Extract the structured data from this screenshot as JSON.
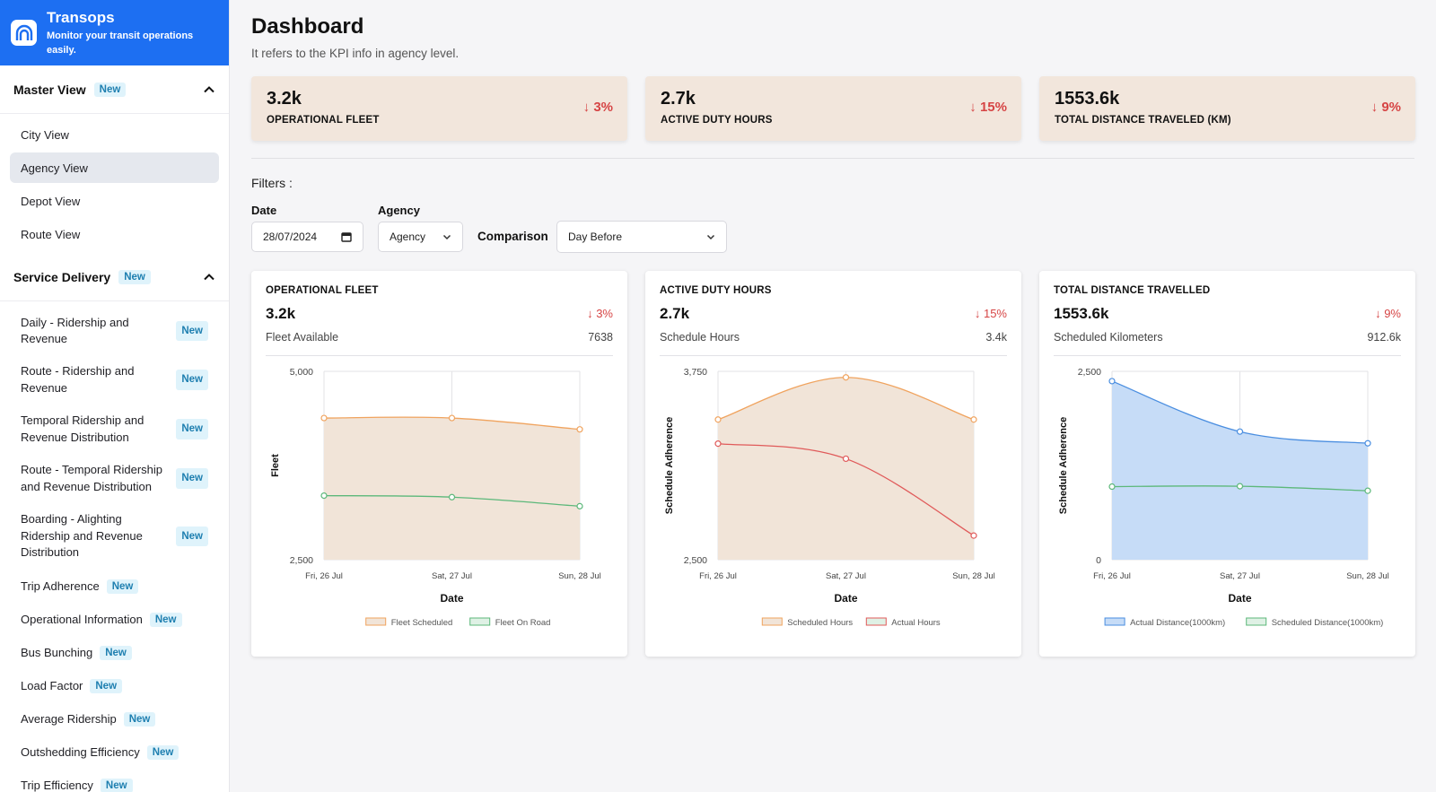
{
  "brand": {
    "title": "Transops",
    "subtitle": "Monitor your transit operations easily."
  },
  "sidebar": {
    "master": {
      "title": "Master View",
      "badge": "New",
      "items": [
        "City View",
        "Agency View",
        "Depot View",
        "Route View"
      ]
    },
    "service": {
      "title": "Service Delivery",
      "badge": "New",
      "items": [
        {
          "label": "Daily - Ridership and Revenue",
          "badge": "New"
        },
        {
          "label": "Route - Ridership and Revenue",
          "badge": "New"
        },
        {
          "label": "Temporal Ridership and Revenue Distribution",
          "badge": "New"
        },
        {
          "label": "Route - Temporal Ridership and Revenue Distribution",
          "badge": "New"
        },
        {
          "label": "Boarding - Alighting Ridership and Revenue Distribution",
          "badge": "New"
        },
        {
          "label": "Trip Adherence",
          "badge": "New"
        },
        {
          "label": "Operational Information",
          "badge": "New"
        },
        {
          "label": "Bus Bunching",
          "badge": "New"
        },
        {
          "label": "Load Factor",
          "badge": "New"
        },
        {
          "label": "Average Ridership",
          "badge": "New"
        },
        {
          "label": "Outshedding Efficiency",
          "badge": "New"
        },
        {
          "label": "Trip Efficiency",
          "badge": "New"
        }
      ]
    }
  },
  "page": {
    "title": "Dashboard",
    "subtitle": "It refers to the KPI info in agency level."
  },
  "kpis": [
    {
      "value": "3.2k",
      "label": "OPERATIONAL FLEET",
      "change": "3%"
    },
    {
      "value": "2.7k",
      "label": "ACTIVE DUTY HOURS",
      "change": "15%"
    },
    {
      "value": "1553.6k",
      "label": "TOTAL DISTANCE TRAVELED (KM)",
      "change": "9%"
    }
  ],
  "filters": {
    "title": "Filters :",
    "date_label": "Date",
    "date_value": "28/07/2024",
    "agency_label": "Agency",
    "agency_value": "Agency",
    "comparison_label": "Comparison",
    "comparison_value": "Day Before"
  },
  "cards": [
    {
      "title": "OPERATIONAL FLEET",
      "value": "3.2k",
      "change": "3%",
      "metric": "Fleet Available",
      "metric_value": "7638"
    },
    {
      "title": "ACTIVE DUTY HOURS",
      "value": "2.7k",
      "change": "15%",
      "metric": "Schedule Hours",
      "metric_value": "3.4k"
    },
    {
      "title": "TOTAL DISTANCE TRAVELLED",
      "value": "1553.6k",
      "change": "9%",
      "metric": "Scheduled Kilometers",
      "metric_value": "912.6k"
    }
  ],
  "colors": {
    "orange": "#f0a35e",
    "green": "#5cb87a",
    "red": "#e05a5a",
    "blue": "#4a8ee0",
    "down": "#d64545"
  },
  "chart_data": [
    {
      "type": "area",
      "categories": [
        "Fri, 26 Jul",
        "Sat, 27 Jul",
        "Sun, 28 Jul"
      ],
      "ylim": [
        2500,
        5000
      ],
      "yticks": [
        "5,000",
        "2,500"
      ],
      "xlabel": "Date",
      "ylabel": "Fleet",
      "series": [
        {
          "name": "Fleet Scheduled",
          "values": [
            4380,
            4380,
            4230
          ],
          "color": "#f0a35e",
          "fill": "#f1e4d8"
        },
        {
          "name": "Fleet On Road",
          "values": [
            3350,
            3330,
            3210
          ],
          "color": "#5cb87a",
          "fill": "none"
        }
      ]
    },
    {
      "type": "area",
      "categories": [
        "Fri, 26 Jul",
        "Sat, 27 Jul",
        "Sun, 28 Jul"
      ],
      "ylim": [
        2500,
        3750
      ],
      "yticks": [
        "3,750",
        "2,500"
      ],
      "xlabel": "Date",
      "ylabel": "Schedule Adherence",
      "series": [
        {
          "name": "Scheduled Hours",
          "values": [
            3430,
            3710,
            3430
          ],
          "color": "#f0a35e",
          "fill": "#f1e4d8"
        },
        {
          "name": "Actual Hours",
          "values": [
            3270,
            3170,
            2660
          ],
          "color": "#e05a5a",
          "fill": "none"
        }
      ]
    },
    {
      "type": "area",
      "categories": [
        "Fri, 26 Jul",
        "Sat, 27 Jul",
        "Sun, 28 Jul"
      ],
      "ylim": [
        0,
        2500
      ],
      "yticks": [
        "2,500",
        "0"
      ],
      "xlabel": "Date",
      "ylabel": "Schedule Adherence",
      "series": [
        {
          "name": "Actual Distance(1000km)",
          "values": [
            2370,
            1700,
            1545
          ],
          "color": "#4a8ee0",
          "fill": "#c6dcf7"
        },
        {
          "name": "Scheduled Distance(1000km)",
          "values": [
            970,
            975,
            915
          ],
          "color": "#5cb87a",
          "fill": "none"
        }
      ]
    }
  ]
}
